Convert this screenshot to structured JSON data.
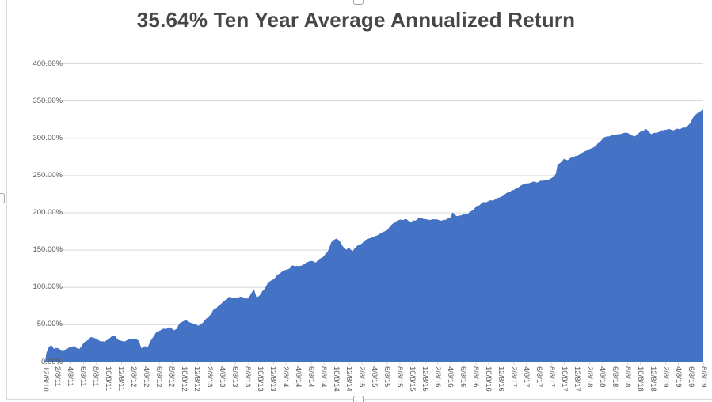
{
  "chart_title": "35.64% Ten Year Average Annualized Return",
  "chart_data": {
    "type": "area",
    "title": "35.64% Ten Year Average Annualized Return",
    "unit": "percent",
    "ylim": [
      0,
      400
    ],
    "y_tick_step": 50,
    "y_ticks": [
      "0.00%",
      "50.00%",
      "100.00%",
      "150.00%",
      "200.00%",
      "250.00%",
      "300.00%",
      "350.00%",
      "400.00%"
    ],
    "x_labels": [
      "12/8/10",
      "2/8/11",
      "4/8/11",
      "6/8/11",
      "8/8/11",
      "10/8/11",
      "12/8/11",
      "2/8/12",
      "4/8/12",
      "6/8/12",
      "8/8/12",
      "10/8/12",
      "12/8/12",
      "2/8/13",
      "4/8/13",
      "6/8/13",
      "8/8/13",
      "10/8/13",
      "12/8/13",
      "2/8/14",
      "4/8/14",
      "6/8/14",
      "8/8/14",
      "10/8/14",
      "12/8/14",
      "2/8/15",
      "4/8/15",
      "6/8/15",
      "8/8/15",
      "10/8/15",
      "12/8/15",
      "2/8/16",
      "4/8/16",
      "6/8/16",
      "8/8/16",
      "10/8/16",
      "12/8/16",
      "2/8/17",
      "4/8/17",
      "6/8/17",
      "8/8/17",
      "10/8/17",
      "12/8/17",
      "2/8/18",
      "4/8/18",
      "6/8/18",
      "8/8/18",
      "10/8/18",
      "12/8/18",
      "2/8/19",
      "4/8/19",
      "6/8/19",
      "8/8/19"
    ],
    "points": [
      [
        0,
        0
      ],
      [
        0.1,
        12
      ],
      [
        0.3,
        20
      ],
      [
        0.5,
        22
      ],
      [
        0.7,
        17
      ],
      [
        1,
        18
      ],
      [
        1.2,
        16
      ],
      [
        1.4,
        15
      ],
      [
        1.7,
        17
      ],
      [
        1.9,
        19
      ],
      [
        2.1,
        20
      ],
      [
        2.3,
        21
      ],
      [
        2.5,
        18
      ],
      [
        2.7,
        17
      ],
      [
        3,
        24
      ],
      [
        3.3,
        28
      ],
      [
        3.6,
        33
      ],
      [
        3.8,
        32
      ],
      [
        4,
        31
      ],
      [
        4.2,
        29
      ],
      [
        4.4,
        27
      ],
      [
        4.8,
        28
      ],
      [
        5,
        30
      ],
      [
        5.2,
        33
      ],
      [
        5.5,
        35
      ],
      [
        5.8,
        29
      ],
      [
        6,
        28
      ],
      [
        6.3,
        27
      ],
      [
        6.7,
        30
      ],
      [
        7,
        31
      ],
      [
        7.2,
        30
      ],
      [
        7.4,
        28
      ],
      [
        7.6,
        18
      ],
      [
        7.9,
        21
      ],
      [
        8.1,
        19
      ],
      [
        8.3,
        27
      ],
      [
        8.5,
        32
      ],
      [
        8.8,
        40
      ],
      [
        9,
        41
      ],
      [
        9.2,
        43
      ],
      [
        9.6,
        44
      ],
      [
        9.9,
        46
      ],
      [
        10.2,
        42
      ],
      [
        10.4,
        44
      ],
      [
        10.6,
        51
      ],
      [
        10.8,
        53
      ],
      [
        11,
        55
      ],
      [
        11.3,
        54
      ],
      [
        11.5,
        52
      ],
      [
        11.8,
        50
      ],
      [
        12,
        49
      ],
      [
        12.1,
        48
      ],
      [
        12.3,
        50
      ],
      [
        12.5,
        53
      ],
      [
        12.9,
        60
      ],
      [
        13,
        62
      ],
      [
        13.4,
        71
      ],
      [
        13.8,
        76
      ],
      [
        14,
        79
      ],
      [
        14.2,
        82
      ],
      [
        14.6,
        87
      ],
      [
        15,
        85
      ],
      [
        15.4,
        87
      ],
      [
        15.9,
        84
      ],
      [
        16.1,
        86
      ],
      [
        16.3,
        92
      ],
      [
        16.5,
        97
      ],
      [
        16.7,
        86
      ],
      [
        17,
        90
      ],
      [
        17.3,
        97
      ],
      [
        17.6,
        106
      ],
      [
        18,
        110
      ],
      [
        18.4,
        117
      ],
      [
        18.8,
        122
      ],
      [
        19,
        123
      ],
      [
        19.2,
        124
      ],
      [
        19.6,
        129
      ],
      [
        20,
        128
      ],
      [
        20.3,
        129
      ],
      [
        20.5,
        131
      ],
      [
        20.8,
        134
      ],
      [
        21,
        135
      ],
      [
        21.3,
        133
      ],
      [
        21.7,
        138
      ],
      [
        22,
        141
      ],
      [
        22.3,
        147
      ],
      [
        22.6,
        160
      ],
      [
        22.8,
        163
      ],
      [
        23,
        165
      ],
      [
        23.2,
        163
      ],
      [
        23.5,
        155
      ],
      [
        23.8,
        150
      ],
      [
        24,
        153
      ],
      [
        24.3,
        148
      ],
      [
        24.7,
        156
      ],
      [
        25,
        158
      ],
      [
        25.3,
        163
      ],
      [
        25.9,
        167
      ],
      [
        26.2,
        169
      ],
      [
        26.5,
        172
      ],
      [
        27,
        176
      ],
      [
        27.4,
        184
      ],
      [
        27.8,
        189
      ],
      [
        28,
        190
      ],
      [
        28.4,
        191
      ],
      [
        28.7,
        189
      ],
      [
        29,
        188
      ],
      [
        29.4,
        191
      ],
      [
        29.7,
        193
      ],
      [
        30,
        191
      ],
      [
        30.3,
        190
      ],
      [
        30.9,
        191
      ],
      [
        31.3,
        189
      ],
      [
        31.6,
        190
      ],
      [
        32,
        193
      ],
      [
        32.2,
        200
      ],
      [
        32.5,
        195
      ],
      [
        33,
        197
      ],
      [
        33.4,
        198
      ],
      [
        33.7,
        202
      ],
      [
        34,
        207
      ],
      [
        34.4,
        211
      ],
      [
        34.7,
        214
      ],
      [
        35,
        215
      ],
      [
        35.3,
        216
      ],
      [
        35.9,
        220
      ],
      [
        36,
        221
      ],
      [
        36.3,
        224
      ],
      [
        36.6,
        227
      ],
      [
        37,
        230
      ],
      [
        37.2,
        232
      ],
      [
        37.5,
        235
      ],
      [
        37.8,
        238
      ],
      [
        38,
        239
      ],
      [
        38.5,
        241
      ],
      [
        39,
        241
      ],
      [
        39.4,
        243
      ],
      [
        39.7,
        244
      ],
      [
        40,
        246
      ],
      [
        40.2,
        248
      ],
      [
        40.35,
        252
      ],
      [
        40.5,
        265
      ],
      [
        40.8,
        268
      ],
      [
        41,
        272
      ],
      [
        41.3,
        270
      ],
      [
        41.6,
        274
      ],
      [
        42,
        276
      ],
      [
        42.4,
        280
      ],
      [
        42.8,
        283
      ],
      [
        43,
        285
      ],
      [
        43.3,
        287
      ],
      [
        43.5,
        289
      ],
      [
        43.8,
        294
      ],
      [
        44,
        298
      ],
      [
        44.2,
        301
      ],
      [
        44.4,
        302
      ],
      [
        44.7,
        303
      ],
      [
        45,
        304
      ],
      [
        45.3,
        305
      ],
      [
        45.6,
        306
      ],
      [
        46,
        307
      ],
      [
        46.2,
        305
      ],
      [
        46.4,
        303
      ],
      [
        46.6,
        302
      ],
      [
        46.8,
        305
      ],
      [
        47,
        308
      ],
      [
        47.3,
        310
      ],
      [
        47.5,
        312
      ],
      [
        47.7,
        308
      ],
      [
        47.9,
        305
      ],
      [
        48,
        306
      ],
      [
        48.3,
        307
      ],
      [
        48.5,
        308
      ],
      [
        48.8,
        310
      ],
      [
        49,
        311
      ],
      [
        49.3,
        312
      ],
      [
        49.6,
        310
      ],
      [
        50,
        312
      ],
      [
        50.3,
        313
      ],
      [
        50.7,
        315
      ],
      [
        51,
        320
      ],
      [
        51.15,
        326
      ],
      [
        51.3,
        330
      ],
      [
        51.6,
        334
      ],
      [
        51.8,
        336
      ],
      [
        52,
        338
      ]
    ],
    "grid": true,
    "legend_position": "none",
    "area_color": "#4472C4",
    "gridline_color": "#d9d9d9",
    "axis_line_color": "#d9d9d9",
    "axis_text_color": "#595959",
    "title_color": "#474747"
  }
}
